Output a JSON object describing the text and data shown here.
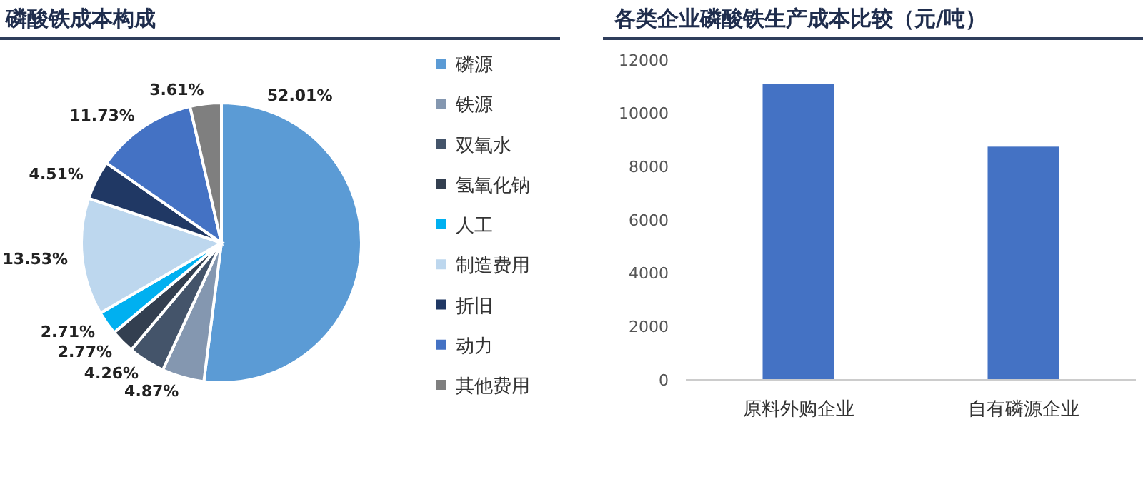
{
  "chart_data": [
    {
      "type": "pie",
      "title": "磷酸铁成本构成",
      "categories": [
        "磷源",
        "铁源",
        "双氧水",
        "氢氧化钠",
        "人工",
        "制造费用",
        "折旧",
        "动力",
        "其他费用"
      ],
      "values": [
        52.01,
        4.87,
        4.26,
        2.77,
        2.71,
        13.53,
        4.51,
        11.73,
        3.61
      ],
      "value_labels": [
        "52.01%",
        "4.87%",
        "4.26%",
        "2.77%",
        "2.71%",
        "13.53%",
        "4.51%",
        "11.73%",
        "3.61%"
      ],
      "colors": [
        "#5b9bd5",
        "#8497b0",
        "#44546a",
        "#333f50",
        "#00b0f0",
        "#bdd7ee",
        "#203864",
        "#4472c4",
        "#7f7f7f"
      ],
      "legend": "right"
    },
    {
      "type": "bar",
      "title": "各类企业磷酸铁生产成本比较（元/吨）",
      "categories": [
        "原料外购企业",
        "自有磷源企业"
      ],
      "values": [
        11100,
        8750
      ],
      "color": "#4472c4",
      "ylim": [
        0,
        12000
      ],
      "yticks": [
        0,
        2000,
        4000,
        6000,
        8000,
        10000,
        12000
      ],
      "grid": false
    }
  ]
}
